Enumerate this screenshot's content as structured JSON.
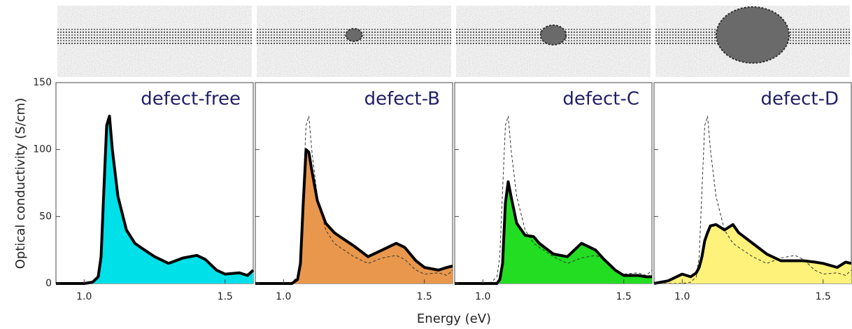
{
  "chart_data": [
    {
      "type": "area",
      "title": "defect-free",
      "ylabel": "Optical conductivity (S/cm)",
      "xlabel": "Energy (eV)",
      "x": [
        0.9,
        0.95,
        1.0,
        1.03,
        1.05,
        1.06,
        1.07,
        1.08,
        1.09,
        1.1,
        1.12,
        1.15,
        1.18,
        1.2,
        1.25,
        1.3,
        1.35,
        1.4,
        1.43,
        1.47,
        1.5,
        1.55,
        1.58,
        1.6
      ],
      "series": [
        {
          "color": "#00e0e8",
          "values": [
            0,
            0,
            0,
            1,
            5,
            20,
            70,
            118,
            125,
            100,
            65,
            40,
            30,
            27,
            20,
            15,
            19,
            21,
            18,
            10,
            7,
            8,
            6,
            10
          ]
        }
      ],
      "xlim": [
        0.9,
        1.6
      ],
      "xticks": [
        {
          "value": 1,
          "label": "1.0"
        },
        1.5
      ],
      "ylim": [
        0,
        150
      ],
      "yticks": [
        0,
        50,
        100,
        150
      ]
    },
    {
      "type": "area",
      "title": "defect-B",
      "x": [
        0.9,
        0.95,
        1.0,
        1.03,
        1.05,
        1.06,
        1.07,
        1.08,
        1.09,
        1.1,
        1.12,
        1.15,
        1.18,
        1.2,
        1.25,
        1.3,
        1.35,
        1.4,
        1.43,
        1.47,
        1.5,
        1.55,
        1.58,
        1.6
      ],
      "series": [
        {
          "color": "#e8974c",
          "values": [
            0,
            0,
            0,
            0,
            3,
            15,
            60,
            100,
            98,
            85,
            62,
            45,
            38,
            35,
            28,
            20,
            25,
            30,
            27,
            17,
            12,
            10,
            12,
            13
          ]
        },
        {
          "dashed": true,
          "values": [
            0,
            0,
            0,
            1,
            5,
            20,
            70,
            118,
            125,
            100,
            65,
            40,
            30,
            27,
            20,
            15,
            19,
            21,
            18,
            10,
            7,
            8,
            6,
            10
          ]
        }
      ],
      "xlim": [
        0.9,
        1.6
      ],
      "xticks": [
        {
          "value": 1,
          "label": "1.0"
        },
        1.5
      ]
    },
    {
      "type": "area",
      "title": "defect-C",
      "x": [
        0.9,
        0.95,
        1.0,
        1.03,
        1.05,
        1.06,
        1.07,
        1.08,
        1.09,
        1.1,
        1.12,
        1.15,
        1.18,
        1.2,
        1.25,
        1.3,
        1.35,
        1.4,
        1.43,
        1.47,
        1.5,
        1.55,
        1.58,
        1.6
      ],
      "series": [
        {
          "color": "#22dd22",
          "values": [
            0,
            0,
            0,
            0,
            0,
            3,
            15,
            60,
            76,
            65,
            45,
            36,
            35,
            30,
            22,
            20,
            30,
            25,
            18,
            10,
            6,
            6,
            5,
            5
          ]
        },
        {
          "dashed": true,
          "values": [
            0,
            0,
            0,
            1,
            5,
            20,
            70,
            118,
            125,
            100,
            65,
            40,
            30,
            27,
            20,
            15,
            19,
            21,
            18,
            10,
            7,
            8,
            6,
            10
          ]
        }
      ],
      "xlim": [
        0.9,
        1.6
      ],
      "xticks": [
        {
          "value": 1,
          "label": "1.0"
        },
        1.5
      ]
    },
    {
      "type": "area",
      "title": "defect-D",
      "x": [
        0.9,
        0.95,
        1.0,
        1.03,
        1.05,
        1.06,
        1.07,
        1.08,
        1.09,
        1.1,
        1.12,
        1.15,
        1.18,
        1.2,
        1.25,
        1.3,
        1.35,
        1.4,
        1.43,
        1.47,
        1.5,
        1.55,
        1.58,
        1.6
      ],
      "series": [
        {
          "color": "#fff27a",
          "values": [
            0,
            2,
            7,
            5,
            8,
            12,
            20,
            32,
            38,
            43,
            44,
            40,
            44,
            38,
            30,
            22,
            17,
            17,
            17,
            16,
            15,
            12,
            16,
            15
          ]
        },
        {
          "dashed": true,
          "values": [
            0,
            0,
            0,
            1,
            5,
            20,
            70,
            118,
            125,
            100,
            65,
            40,
            30,
            27,
            20,
            15,
            19,
            21,
            18,
            10,
            7,
            8,
            6,
            10
          ]
        }
      ],
      "xlim": [
        0.9,
        1.6
      ],
      "xticks": [
        {
          "value": 1,
          "label": "1.0"
        },
        1.5
      ]
    }
  ]
}
